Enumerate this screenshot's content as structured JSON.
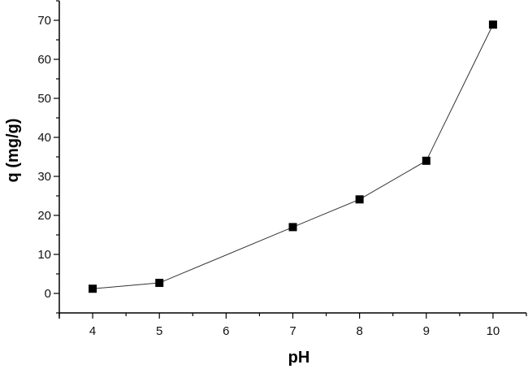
{
  "chart_data": {
    "type": "line",
    "title": "",
    "xlabel": "pH",
    "ylabel": "q (mg/g)",
    "x": [
      4,
      5,
      7,
      8,
      9,
      10
    ],
    "series": [
      {
        "name": "q",
        "values": [
          1.2,
          2.7,
          17.0,
          24.1,
          34.0,
          68.9
        ],
        "marker": "square",
        "color": "#000000"
      }
    ],
    "xlim": [
      3.5,
      10.5
    ],
    "ylim": [
      -5,
      75
    ],
    "xticks": [
      4,
      5,
      6,
      7,
      8,
      9,
      10
    ],
    "yticks": [
      0,
      10,
      20,
      30,
      40,
      50,
      60,
      70
    ],
    "grid": false,
    "legend": null
  },
  "colors": {
    "line": "#333333",
    "marker": "#000000",
    "axis": "#000000"
  }
}
